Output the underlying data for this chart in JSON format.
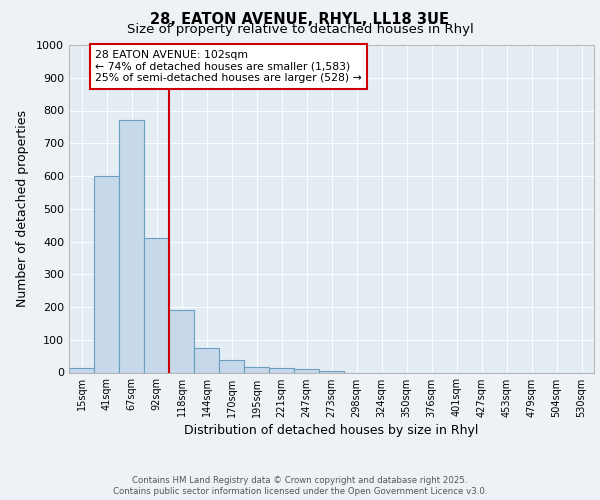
{
  "title_line1": "28, EATON AVENUE, RHYL, LL18 3UE",
  "title_line2": "Size of property relative to detached houses in Rhyl",
  "xlabel": "Distribution of detached houses by size in Rhyl",
  "ylabel": "Number of detached properties",
  "categories": [
    "15sqm",
    "41sqm",
    "67sqm",
    "92sqm",
    "118sqm",
    "144sqm",
    "170sqm",
    "195sqm",
    "221sqm",
    "247sqm",
    "273sqm",
    "298sqm",
    "324sqm",
    "350sqm",
    "376sqm",
    "401sqm",
    "427sqm",
    "453sqm",
    "479sqm",
    "504sqm",
    "530sqm"
  ],
  "values": [
    15,
    600,
    770,
    410,
    192,
    75,
    38,
    18,
    15,
    12,
    6,
    0,
    0,
    0,
    0,
    0,
    0,
    0,
    0,
    0,
    0
  ],
  "bar_color": "#c8d8eb",
  "bar_edge_color": "#6a9fc0",
  "vline_x_idx": 3.5,
  "vline_color": "#cc0000",
  "annotation_text": "28 EATON AVENUE: 102sqm\n← 74% of detached houses are smaller (1,583)\n25% of semi-detached houses are larger (528) →",
  "ylim": [
    0,
    1000
  ],
  "yticks": [
    0,
    100,
    200,
    300,
    400,
    500,
    600,
    700,
    800,
    900,
    1000
  ],
  "footer_line1": "Contains HM Land Registry data © Crown copyright and database right 2025.",
  "footer_line2": "Contains public sector information licensed under the Open Government Licence v3.0.",
  "bg_color": "#eef2f7",
  "plot_bg_color": "#e4ecf4"
}
